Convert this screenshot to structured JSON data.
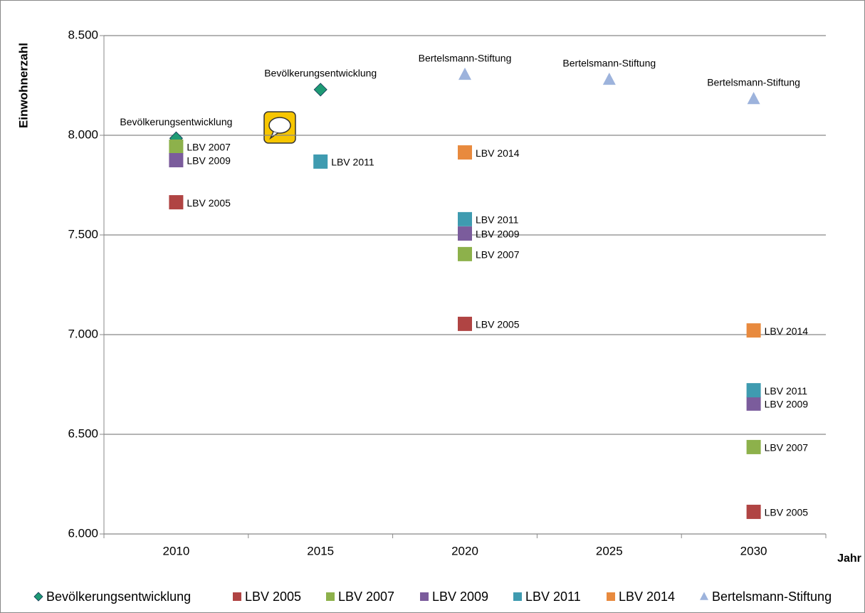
{
  "chart_data": {
    "type": "scatter",
    "xlabel": "Jahr",
    "ylabel": "Einwohnerzahl",
    "categories": [
      "2010",
      "2015",
      "2020",
      "2025",
      "2030"
    ],
    "ylim": [
      6000,
      8500
    ],
    "yticks": [
      {
        "value": 6000,
        "label": "6.000"
      },
      {
        "value": 6500,
        "label": "6.500"
      },
      {
        "value": 7000,
        "label": "7.000"
      },
      {
        "value": 7500,
        "label": "7.500"
      },
      {
        "value": 8000,
        "label": "8.000"
      },
      {
        "value": 8500,
        "label": "8.500"
      }
    ],
    "grid": true,
    "legend": "bottom",
    "series": [
      {
        "name": "Bevölkerungsentwicklung",
        "color": "#1e9a74",
        "marker": "diamond",
        "values": [
          7985,
          8229,
          null,
          null,
          null
        ]
      },
      {
        "name": "LBV 2005",
        "color": "#b04443",
        "marker": "square",
        "values": [
          7664,
          null,
          7054,
          null,
          6111
        ]
      },
      {
        "name": "LBV 2007",
        "color": "#8db14b",
        "marker": "square",
        "values": [
          7943,
          null,
          7404,
          null,
          6436
        ]
      },
      {
        "name": "LBV 2009",
        "color": "#7b5c9c",
        "marker": "square",
        "values": [
          7875,
          null,
          7507,
          null,
          6654
        ]
      },
      {
        "name": "LBV 2011",
        "color": "#3f9bb0",
        "marker": "square",
        "values": [
          null,
          7868,
          7579,
          null,
          6721
        ]
      },
      {
        "name": "LBV 2014",
        "color": "#e88a3e",
        "marker": "square",
        "values": [
          null,
          null,
          7914,
          null,
          7021
        ]
      },
      {
        "name": "Bertelsmann-Stiftung",
        "color": "#9db3dc",
        "marker": "triangle",
        "values": [
          null,
          null,
          8304,
          8279,
          8182
        ]
      }
    ]
  }
}
